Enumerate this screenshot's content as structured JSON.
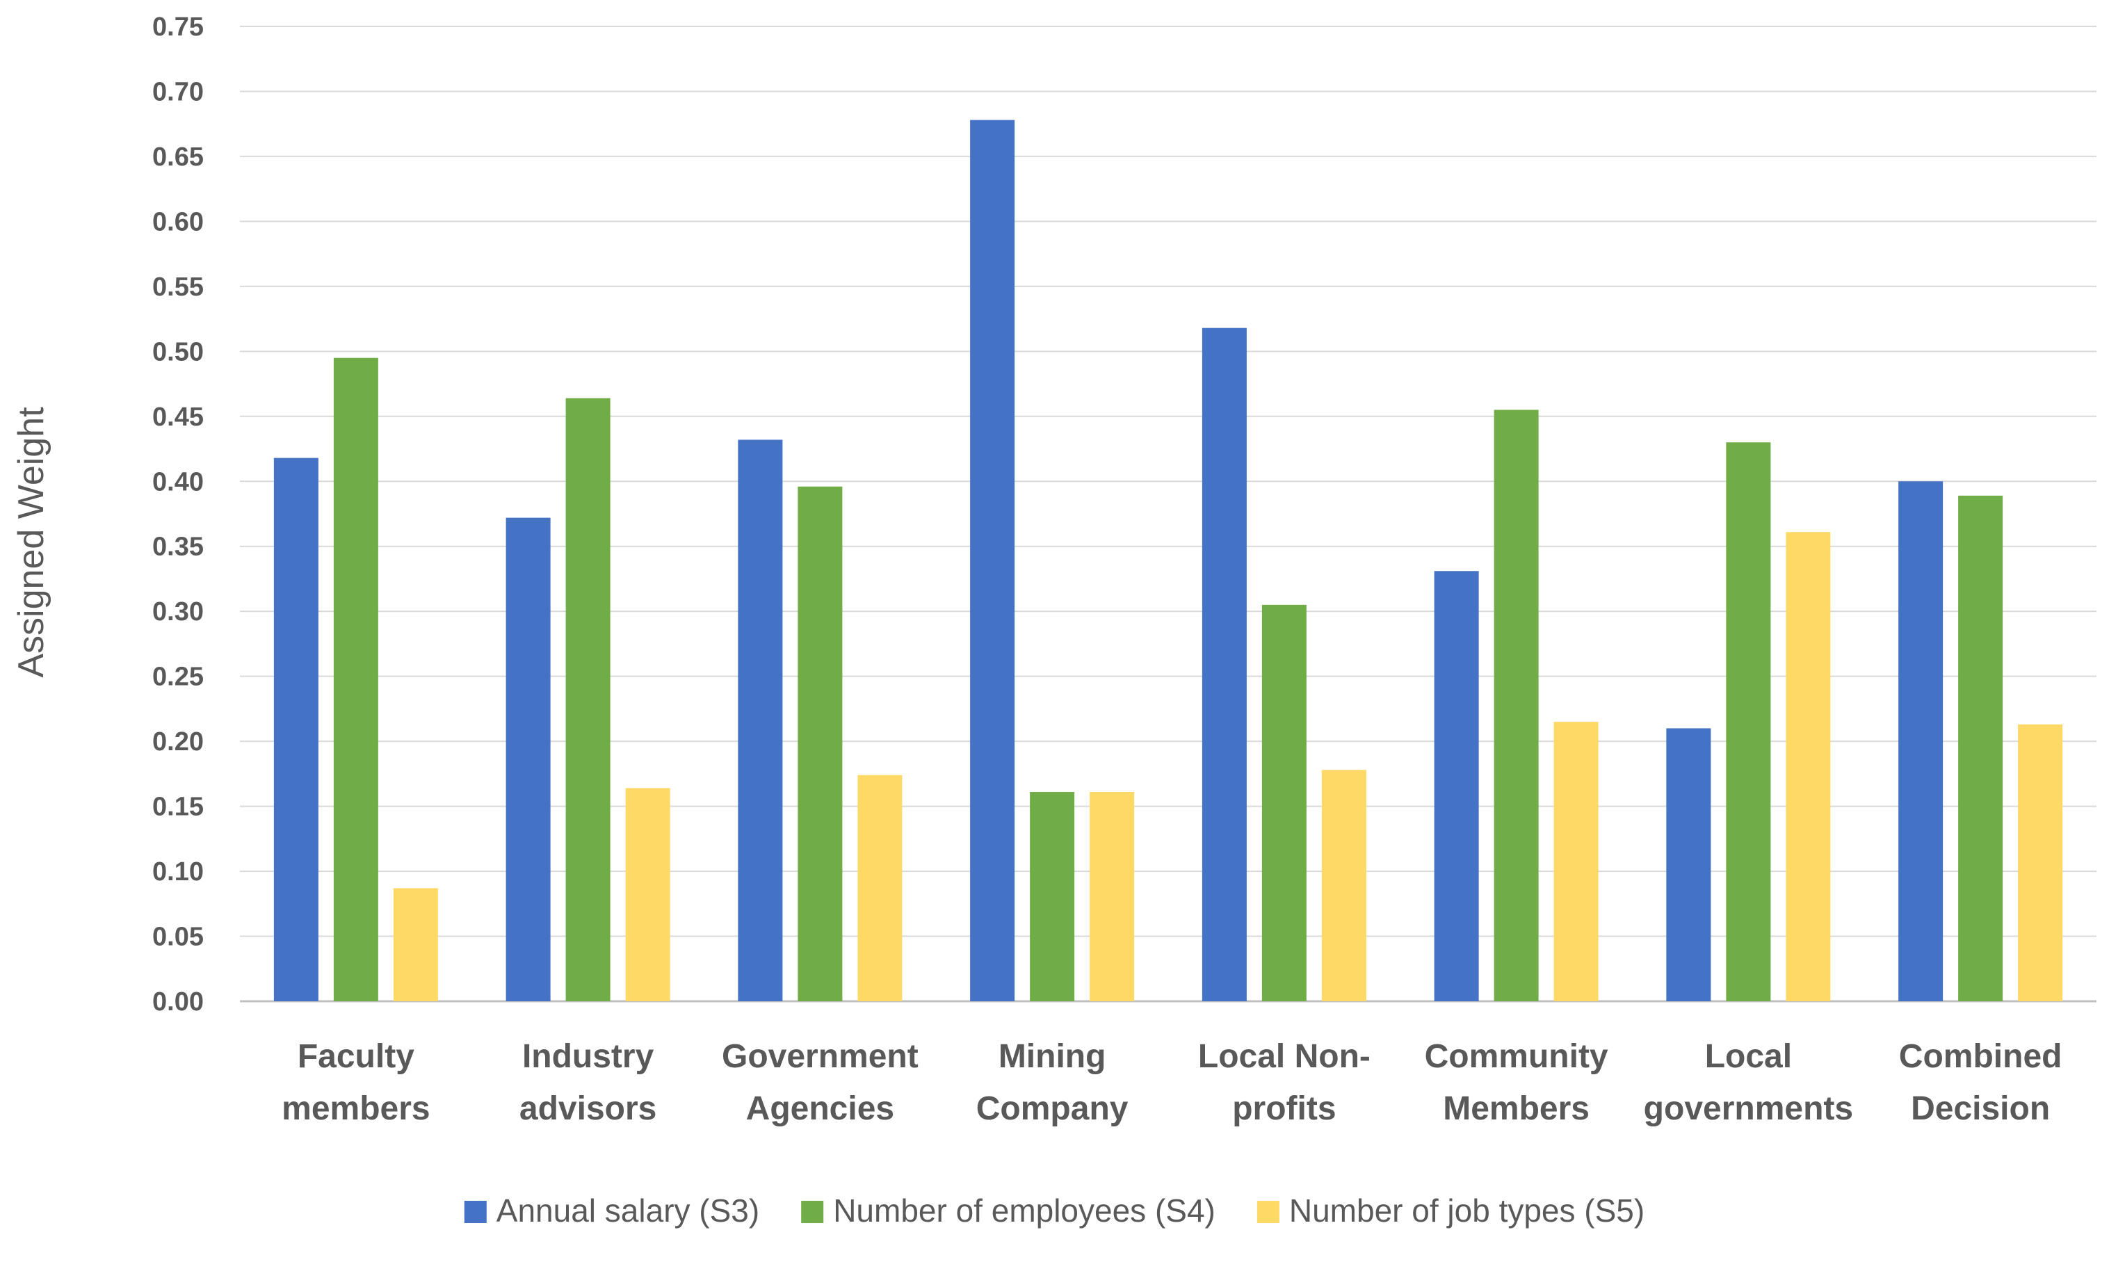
{
  "chart_data": {
    "type": "bar",
    "title": "",
    "xlabel": "",
    "ylabel": "Assigned Weight",
    "ylim": [
      0,
      0.75
    ],
    "ytick_step": 0.05,
    "grid": true,
    "legend_position": "bottom",
    "categories": [
      [
        "Faculty",
        "members"
      ],
      [
        "Industry",
        "advisors"
      ],
      [
        "Government",
        "Agencies"
      ],
      [
        "Mining",
        "Company"
      ],
      [
        "Local Non-",
        "profits"
      ],
      [
        "Community",
        "Members"
      ],
      [
        "Local",
        "governments"
      ],
      [
        "Combined",
        "Decision"
      ]
    ],
    "series": [
      {
        "name": "Annual salary (S3)",
        "color": "#4472c4",
        "values": [
          0.418,
          0.372,
          0.432,
          0.678,
          0.518,
          0.331,
          0.21,
          0.4
        ]
      },
      {
        "name": "Number of employees (S4)",
        "color": "#70ad47",
        "values": [
          0.495,
          0.464,
          0.396,
          0.161,
          0.305,
          0.455,
          0.43,
          0.389
        ]
      },
      {
        "name": "Number of job types (S5)",
        "color": "#ffd966",
        "values": [
          0.087,
          0.164,
          0.174,
          0.161,
          0.178,
          0.215,
          0.361,
          0.213
        ]
      }
    ]
  }
}
